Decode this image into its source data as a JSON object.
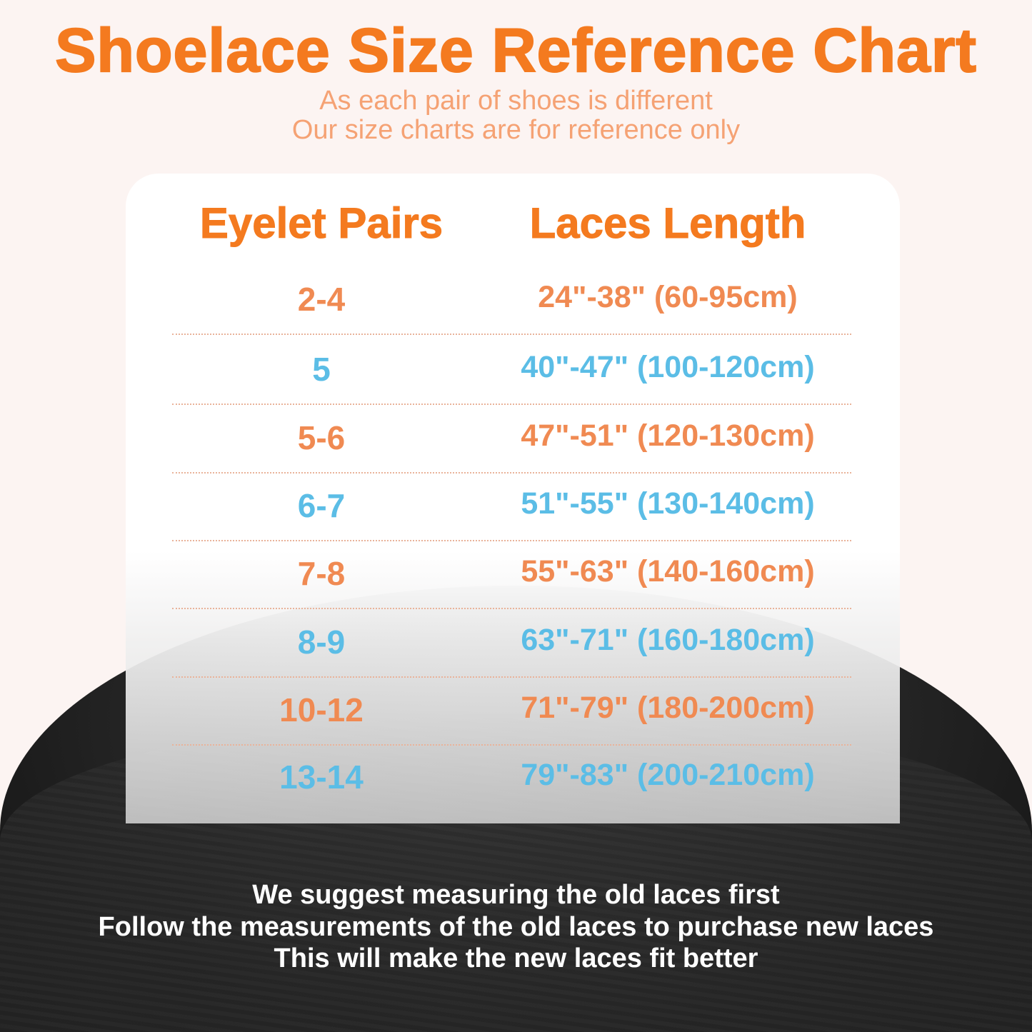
{
  "title": "Shoelace Size Reference Chart",
  "subtitle": [
    "As each pair of shoes is different",
    "Our size charts are for reference only"
  ],
  "table": {
    "headers": [
      "Eyelet Pairs",
      "Laces Length"
    ],
    "rows": [
      {
        "pairs": "2-4",
        "length": "24\"-38\" (60-95cm)",
        "color": "#f08a52"
      },
      {
        "pairs": "5",
        "length": "40\"-47\" (100-120cm)",
        "color": "#5bbde6"
      },
      {
        "pairs": "5-6",
        "length": "47\"-51\" (120-130cm)",
        "color": "#f08a52"
      },
      {
        "pairs": "6-7",
        "length": "51\"-55\" (130-140cm)",
        "color": "#5bbde6"
      },
      {
        "pairs": "7-8",
        "length": "55\"-63\" (140-160cm)",
        "color": "#f08a52"
      },
      {
        "pairs": "8-9",
        "length": "63\"-71\" (160-180cm)",
        "color": "#5bbde6"
      },
      {
        "pairs": "10-12",
        "length": "71\"-79\" (180-200cm)",
        "color": "#f08a52"
      },
      {
        "pairs": "13-14",
        "length": "79\"-83\" (200-210cm)",
        "color": "#5bbde6"
      }
    ]
  },
  "notes": [
    "We suggest measuring the old laces first",
    "Follow the measurements of the old laces to purchase new laces",
    "This will make the new laces fit better"
  ],
  "colors": {
    "title": "#f47a1f",
    "subtitle": "#f5a274",
    "orange_row": "#f08a52",
    "blue_row": "#5bbde6"
  }
}
